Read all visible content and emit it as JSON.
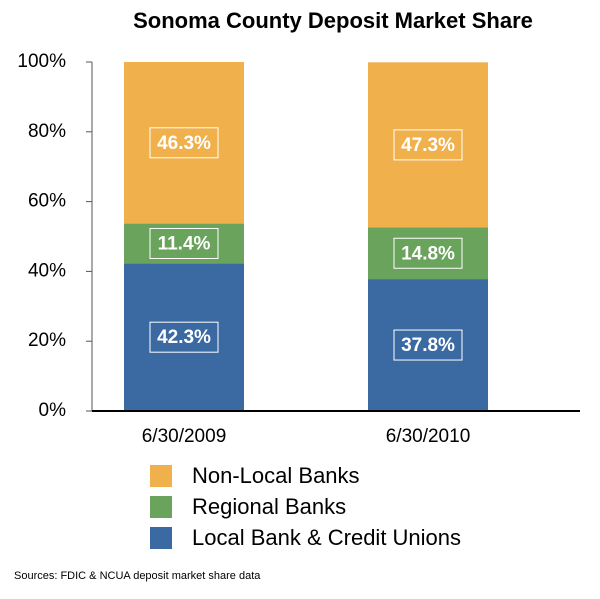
{
  "chart_data": {
    "type": "stacked_bar",
    "title": "Sonoma County Deposit Market Share",
    "categories": [
      "6/30/2009",
      "6/30/2010"
    ],
    "series": [
      {
        "name": "Local Bank & Credit Unions",
        "color": "#3b6aa3",
        "values": [
          42.3,
          37.8
        ],
        "value_labels": [
          "42.3%",
          "37.8%"
        ]
      },
      {
        "name": "Regional Banks",
        "color": "#6aa35c",
        "values": [
          11.4,
          14.8
        ],
        "value_labels": [
          "11.4%",
          "14.8%"
        ]
      },
      {
        "name": "Non-Local Banks",
        "color": "#f0b04b",
        "values": [
          46.3,
          47.3
        ],
        "value_labels": [
          "46.3%",
          "47.3%"
        ]
      }
    ],
    "ylim": [
      0,
      100
    ],
    "yticks": [
      {
        "value": 0,
        "label": "0%"
      },
      {
        "value": 20,
        "label": "20%"
      },
      {
        "value": 40,
        "label": "40%"
      },
      {
        "value": 60,
        "label": "60%"
      },
      {
        "value": 80,
        "label": "80%"
      },
      {
        "value": 100,
        "label": "100%"
      }
    ],
    "legend": "bottom",
    "source": "Sources: FDIC & NCUA deposit market share data"
  }
}
